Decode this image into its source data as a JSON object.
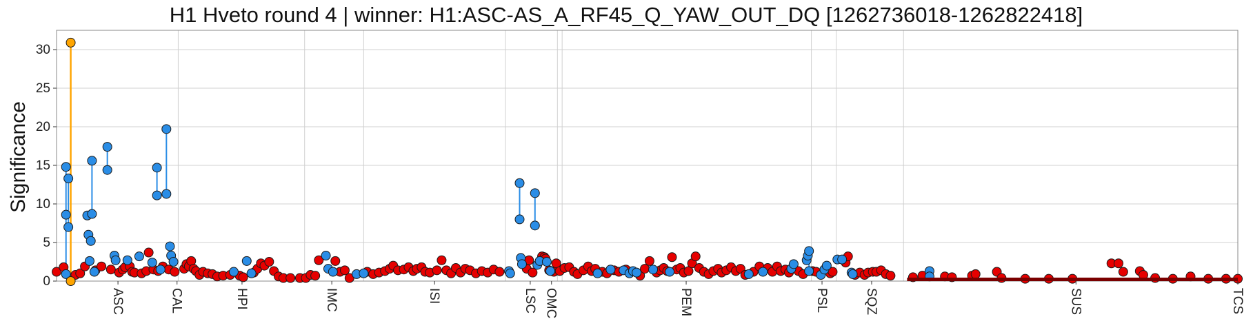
{
  "chart_data": {
    "type": "scatter",
    "title": "H1 Hveto round 4 | winner: H1:ASC-AS_A_RF45_Q_YAW_OUT_DQ [1262736018-1262822418]",
    "xlabel": "",
    "ylabel": "Significance",
    "ylim": [
      0,
      32.5
    ],
    "xlim": [
      0,
      1000
    ],
    "yticks": [
      0,
      5,
      10,
      15,
      20,
      25,
      30
    ],
    "grid": true,
    "legend": "none",
    "x_categories": [
      {
        "label": "ASC",
        "x": 52
      },
      {
        "label": "CAL",
        "x": 102
      },
      {
        "label": "HPI",
        "x": 157
      },
      {
        "label": "IMC",
        "x": 233
      },
      {
        "label": "ISI",
        "x": 320
      },
      {
        "label": "LSC",
        "x": 401
      },
      {
        "label": "OMC",
        "x": 419
      },
      {
        "label": "PEM",
        "x": 533
      },
      {
        "label": "PSL",
        "x": 648
      },
      {
        "label": "SQZ",
        "x": 690
      },
      {
        "label": "SUS",
        "x": 863
      },
      {
        "label": "TCS",
        "x": 1000
      }
    ],
    "category_boundaries": [
      103,
      210,
      260,
      380,
      424,
      428,
      639,
      660,
      717
    ],
    "colors": {
      "winner": "#ffa500",
      "previous_round": "#2a8de6",
      "other": "#e60000",
      "grid": "#d0d0d0"
    },
    "series": [
      {
        "role": "winner",
        "points": [
          [
            12,
            30.9
          ],
          [
            12,
            0.0
          ]
        ]
      },
      {
        "role": "previous_round",
        "points": [
          [
            8,
            14.8
          ],
          [
            10,
            13.3
          ],
          [
            8,
            8.6
          ],
          [
            10,
            7.0
          ],
          [
            8,
            0.9
          ],
          [
            26,
            8.5
          ],
          [
            27,
            6.0
          ],
          [
            29,
            5.2
          ],
          [
            28,
            2.6
          ],
          [
            30,
            15.6
          ],
          [
            30,
            8.7
          ],
          [
            32,
            1.2
          ],
          [
            43,
            17.4
          ],
          [
            43,
            14.4
          ],
          [
            49,
            3.3
          ],
          [
            50,
            2.7
          ],
          [
            60,
            2.7
          ],
          [
            70,
            3.2
          ],
          [
            81,
            2.4
          ],
          [
            85,
            14.7
          ],
          [
            85,
            11.1
          ],
          [
            88,
            1.5
          ],
          [
            93,
            19.7
          ],
          [
            93,
            11.3
          ],
          [
            96,
            4.5
          ],
          [
            97,
            3.3
          ],
          [
            99,
            2.5
          ],
          [
            150,
            1.2
          ],
          [
            161,
            2.6
          ],
          [
            165,
            1.0
          ],
          [
            228,
            3.3
          ],
          [
            230,
            1.6
          ],
          [
            234,
            1.2
          ],
          [
            254,
            0.9
          ],
          [
            260,
            1.0
          ],
          [
            383,
            1.3
          ],
          [
            384,
            1.0
          ],
          [
            392,
            12.7
          ],
          [
            392,
            8.0
          ],
          [
            393,
            3.0
          ],
          [
            394,
            2.2
          ],
          [
            405,
            11.4
          ],
          [
            405,
            7.2
          ],
          [
            407,
            2.1
          ],
          [
            409,
            2.6
          ],
          [
            415,
            2.5
          ],
          [
            418,
            1.3
          ],
          [
            458,
            1.0
          ],
          [
            469,
            1.5
          ],
          [
            480,
            1.4
          ],
          [
            485,
            1.0
          ],
          [
            488,
            1.3
          ],
          [
            491,
            1.1
          ],
          [
            505,
            1.5
          ],
          [
            519,
            1.2
          ],
          [
            586,
            0.9
          ],
          [
            598,
            1.2
          ],
          [
            622,
            1.6
          ],
          [
            624,
            2.2
          ],
          [
            635,
            2.7
          ],
          [
            636,
            3.3
          ],
          [
            637,
            3.9
          ],
          [
            637,
            1.3
          ],
          [
            647,
            0.8
          ],
          [
            650,
            1.5
          ],
          [
            652,
            2.0
          ],
          [
            661,
            2.8
          ],
          [
            665,
            2.8
          ],
          [
            673,
            1.1
          ],
          [
            674,
            0.9
          ],
          [
            739,
            1.3
          ],
          [
            739,
            0.6
          ]
        ]
      },
      {
        "role": "other",
        "points": [
          [
            0,
            1.2
          ],
          [
            6,
            1.8
          ],
          [
            16,
            0.8
          ],
          [
            20,
            1.0
          ],
          [
            24,
            1.9
          ],
          [
            33,
            1.4
          ],
          [
            38,
            1.9
          ],
          [
            46,
            1.5
          ],
          [
            53,
            1.1
          ],
          [
            56,
            1.5
          ],
          [
            58,
            1.8
          ],
          [
            62,
            1.9
          ],
          [
            64,
            1.2
          ],
          [
            66,
            1.1
          ],
          [
            72,
            1.0
          ],
          [
            76,
            1.3
          ],
          [
            78,
            3.7
          ],
          [
            82,
            1.5
          ],
          [
            86,
            1.3
          ],
          [
            90,
            1.9
          ],
          [
            95,
            1.5
          ],
          [
            100,
            1.2
          ],
          [
            108,
            1.6
          ],
          [
            110,
            2.2
          ],
          [
            112,
            1.9
          ],
          [
            114,
            2.6
          ],
          [
            116,
            1.6
          ],
          [
            118,
            1.3
          ],
          [
            121,
            0.8
          ],
          [
            124,
            1.2
          ],
          [
            128,
            1.0
          ],
          [
            132,
            0.9
          ],
          [
            136,
            0.6
          ],
          [
            141,
            0.7
          ],
          [
            147,
            0.8
          ],
          [
            155,
            0.7
          ],
          [
            158,
            0.5
          ],
          [
            167,
            1.1
          ],
          [
            170,
            1.6
          ],
          [
            173,
            2.3
          ],
          [
            176,
            2.0
          ],
          [
            180,
            2.5
          ],
          [
            184,
            1.3
          ],
          [
            188,
            0.6
          ],
          [
            192,
            0.4
          ],
          [
            198,
            0.4
          ],
          [
            206,
            0.4
          ],
          [
            211,
            0.4
          ],
          [
            215,
            0.8
          ],
          [
            219,
            0.7
          ],
          [
            222,
            2.7
          ],
          [
            236,
            2.6
          ],
          [
            240,
            1.2
          ],
          [
            244,
            1.4
          ],
          [
            248,
            0.4
          ],
          [
            263,
            1.2
          ],
          [
            268,
            0.9
          ],
          [
            273,
            1.1
          ],
          [
            278,
            1.3
          ],
          [
            282,
            1.6
          ],
          [
            285,
            2.0
          ],
          [
            289,
            1.4
          ],
          [
            294,
            1.5
          ],
          [
            298,
            1.8
          ],
          [
            302,
            1.3
          ],
          [
            305,
            1.6
          ],
          [
            309,
            1.8
          ],
          [
            312,
            1.2
          ],
          [
            316,
            1.1
          ],
          [
            322,
            1.4
          ],
          [
            326,
            2.7
          ],
          [
            330,
            1.4
          ],
          [
            334,
            1.0
          ],
          [
            338,
            1.7
          ],
          [
            342,
            1.1
          ],
          [
            346,
            1.6
          ],
          [
            350,
            1.4
          ],
          [
            355,
            1.0
          ],
          [
            360,
            1.3
          ],
          [
            365,
            1.1
          ],
          [
            370,
            1.5
          ],
          [
            375,
            1.2
          ],
          [
            398,
            1.6
          ],
          [
            400,
            2.7
          ],
          [
            403,
            1.1
          ],
          [
            411,
            3.2
          ],
          [
            413,
            3.1
          ],
          [
            414,
            2.9
          ],
          [
            417,
            1.4
          ],
          [
            421,
            1.2
          ],
          [
            423,
            2.3
          ],
          [
            426,
            1.3
          ],
          [
            430,
            1.7
          ],
          [
            434,
            1.8
          ],
          [
            438,
            1.2
          ],
          [
            441,
            0.9
          ],
          [
            446,
            1.4
          ],
          [
            450,
            1.9
          ],
          [
            453,
            1.3
          ],
          [
            456,
            1.6
          ],
          [
            462,
            1.2
          ],
          [
            466,
            1.0
          ],
          [
            472,
            1.4
          ],
          [
            476,
            1.2
          ],
          [
            482,
            1.5
          ],
          [
            494,
            0.7
          ],
          [
            498,
            1.6
          ],
          [
            502,
            2.6
          ],
          [
            508,
            1.1
          ],
          [
            511,
            1.4
          ],
          [
            514,
            1.7
          ],
          [
            517,
            1.3
          ],
          [
            521,
            3.1
          ],
          [
            525,
            1.5
          ],
          [
            528,
            1.7
          ],
          [
            531,
            1.1
          ],
          [
            535,
            1.3
          ],
          [
            538,
            2.3
          ],
          [
            541,
            3.2
          ],
          [
            544,
            1.7
          ],
          [
            548,
            1.2
          ],
          [
            552,
            0.9
          ],
          [
            556,
            1.3
          ],
          [
            560,
            1.6
          ],
          [
            563,
            1.1
          ],
          [
            567,
            1.4
          ],
          [
            571,
            1.8
          ],
          [
            575,
            1.3
          ],
          [
            579,
            1.6
          ],
          [
            583,
            0.8
          ],
          [
            590,
            1.2
          ],
          [
            595,
            1.9
          ],
          [
            602,
            1.7
          ],
          [
            606,
            1.2
          ],
          [
            610,
            1.9
          ],
          [
            613,
            1.3
          ],
          [
            617,
            1.5
          ],
          [
            620,
            1.1
          ],
          [
            628,
            1.3
          ],
          [
            632,
            0.9
          ],
          [
            640,
            1.3
          ],
          [
            643,
            1.2
          ],
          [
            655,
            1.0
          ],
          [
            657,
            1.2
          ],
          [
            668,
            2.4
          ],
          [
            670,
            3.2
          ],
          [
            676,
            0.8
          ],
          [
            680,
            1.1
          ],
          [
            684,
            0.8
          ],
          [
            687,
            1.1
          ],
          [
            691,
            1.2
          ],
          [
            694,
            1.2
          ],
          [
            698,
            1.4
          ],
          [
            702,
            0.9
          ],
          [
            706,
            0.7
          ],
          [
            725,
            0.5
          ],
          [
            733,
            0.7
          ],
          [
            752,
            0.6
          ],
          [
            758,
            0.5
          ],
          [
            775,
            0.7
          ],
          [
            778,
            0.9
          ],
          [
            796,
            1.2
          ],
          [
            800,
            0.4
          ],
          [
            820,
            0.3
          ],
          [
            840,
            0.3
          ],
          [
            860,
            0.3
          ],
          [
            893,
            2.3
          ],
          [
            899,
            2.3
          ],
          [
            903,
            1.2
          ],
          [
            917,
            1.3
          ],
          [
            920,
            0.8
          ],
          [
            930,
            0.4
          ],
          [
            945,
            0.3
          ],
          [
            960,
            0.6
          ],
          [
            975,
            0.3
          ],
          [
            990,
            0.3
          ],
          [
            1000,
            0.3
          ]
        ]
      }
    ]
  }
}
